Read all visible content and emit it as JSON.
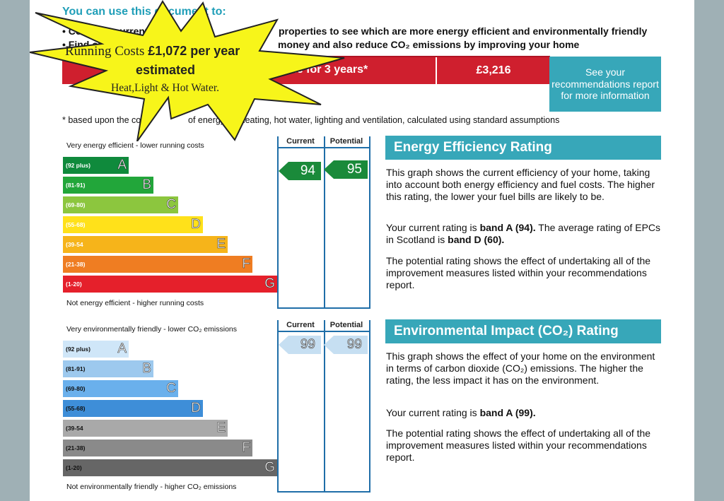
{
  "intro": {
    "heading": "You can use this document to:",
    "bullet1_a": "• Compare current ratings",
    "bullet1_b": "properties to see which are more energy efficient and environmentally friendly",
    "bullet2_a": "• Find out how you can save",
    "bullet2_b": "money and also reduce CO₂ emissions by improving your home"
  },
  "cost": {
    "label": "home for 3 years*",
    "value": "£3,216",
    "recommendations_button": "See your recommendations report for more information",
    "footnote_a": "* based upon the cost",
    "footnote_b": "of energy for heating, hot water, lighting and ventilation, calculated using standard assumptions"
  },
  "starburst": {
    "line1_prefix": "Running Costs ",
    "line1_amount": "£1,072 per year",
    "line2": "estimated",
    "line3": "Heat,Light & Hot Water."
  },
  "energy": {
    "top_label": "Very energy efficient - lower running costs",
    "bottom_label": "Not energy efficient - higher running costs",
    "col_current": "Current",
    "col_potential": "Potential",
    "current_value": "94",
    "potential_value": "95",
    "current_color": "#1a8a3a",
    "potential_color": "#1a8a3a",
    "bands": [
      {
        "range": "(92 plus)",
        "letter": "A",
        "color": "#0f8a3c",
        "rank": 1
      },
      {
        "range": "(81-91)",
        "letter": "B",
        "color": "#22a63a",
        "rank": 2
      },
      {
        "range": "(69-80)",
        "letter": "C",
        "color": "#8cc63e",
        "rank": 3
      },
      {
        "range": "(55-68)",
        "letter": "D",
        "color": "#ffe11a",
        "rank": 4
      },
      {
        "range": "(39-54",
        "letter": "E",
        "color": "#f6b41a",
        "rank": 5
      },
      {
        "range": "(21-38)",
        "letter": "F",
        "color": "#ef7d22",
        "rank": 6
      },
      {
        "range": "(1-20)",
        "letter": "G",
        "color": "#e5202b",
        "rank": 7
      }
    ],
    "section_title": "Energy Efficiency Rating",
    "p1": "This graph shows the current efficiency of your home, taking into account both energy efficiency and fuel costs. The higher this rating, the lower your fuel bills are likely to be.",
    "p2_a": "Your current rating is ",
    "p2_b": "band A (94).",
    "p2_c": " The average rating of EPCs in Scotland is ",
    "p2_d": "band D (60).",
    "p3": "The potential rating shows the effect of undertaking all of the improvement measures listed within your recommendations report."
  },
  "environment": {
    "top_label": "Very environmentally friendly - lower CO₂ emissions",
    "bottom_label": "Not environmentally friendly - higher CO₂ emissions",
    "col_current": "Current",
    "col_potential": "Potential",
    "current_value": "99",
    "potential_value": "99",
    "arrow_color": "#c6dff2",
    "bands": [
      {
        "range": "(92 plus)",
        "letter": "A",
        "color": "#cfe6f8",
        "rank": 1
      },
      {
        "range": "(81-91)",
        "letter": "B",
        "color": "#9dc9ee",
        "rank": 2
      },
      {
        "range": "(69-80)",
        "letter": "C",
        "color": "#6ab0ec",
        "rank": 3
      },
      {
        "range": "(55-68)",
        "letter": "D",
        "color": "#3e8ed8",
        "rank": 4
      },
      {
        "range": "(39-54",
        "letter": "E",
        "color": "#a9a9a9",
        "rank": 5
      },
      {
        "range": "(21-38)",
        "letter": "F",
        "color": "#8a8a8a",
        "rank": 6
      },
      {
        "range": "(1-20)",
        "letter": "G",
        "color": "#666666",
        "rank": 7
      }
    ],
    "section_title": "Environmental Impact (CO₂) Rating",
    "p1": "This graph shows the effect of your home on the environment in terms of carbon dioxide (CO₂) emissions. The higher the rating, the less impact it has on the environment.",
    "p2_a": "Your current rating is ",
    "p2_b": "band A (99).",
    "p3": "The potential rating shows the effect of undertaking all of the improvement measures listed within your recommendations report."
  }
}
